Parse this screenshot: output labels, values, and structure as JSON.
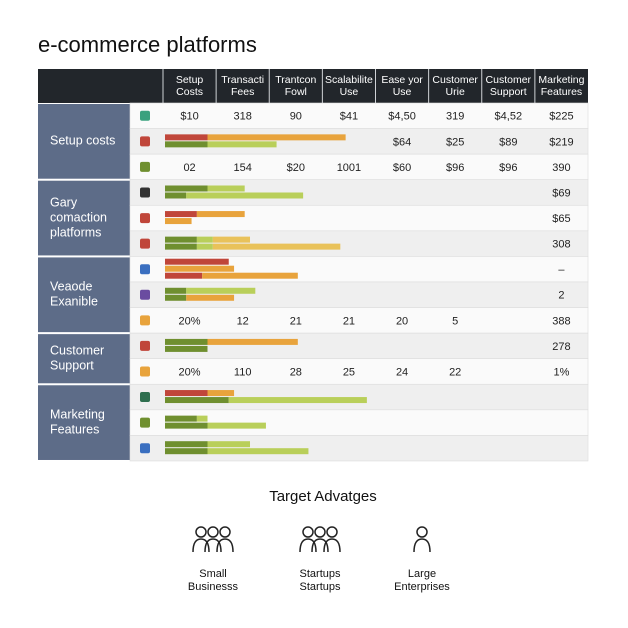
{
  "title": "e-commerce platforms",
  "table": {
    "columns": [
      [
        "Setup",
        "Costs"
      ],
      [
        "Transacti",
        "Fees"
      ],
      [
        "Trantcon",
        "Fowl"
      ],
      [
        "Scalabilite",
        "Use"
      ],
      [
        "Ease yor",
        "Use"
      ],
      [
        "Customer",
        "Urie"
      ],
      [
        "Customer",
        "Support"
      ],
      [
        "Marketing",
        "Features"
      ]
    ],
    "groups": [
      {
        "label": [
          "Setup costs"
        ],
        "rows": [
          {
            "cells": [
              "$10",
              "318",
              "90",
              "$41",
              "$4,50",
              "319",
              "$4,52",
              "$225"
            ],
            "bars": []
          },
          {
            "cells": [
              null,
              null,
              null,
              null,
              "$64",
              "$25",
              "$89",
              "$219"
            ],
            "bars": [
              [
                {
                  "color": "#c0463a",
                  "value": 0.8
                },
                {
                  "color": "#e8a33c",
                  "value": 2.6
                }
              ],
              [
                {
                  "color": "#6f8f2f",
                  "value": 0.8
                },
                {
                  "color": "#b9cf5a",
                  "value": 1.3
                }
              ]
            ]
          },
          {
            "cells": [
              "02",
              "154",
              "$20",
              "1001",
              "$60",
              "$96",
              "$96",
              "390"
            ],
            "bars": []
          }
        ]
      },
      {
        "label": [
          "Gary",
          "comaction",
          "platforms"
        ],
        "rows": [
          {
            "cells": [
              null,
              null,
              null,
              null,
              null,
              null,
              null,
              "$69"
            ],
            "bars": [
              [
                {
                  "color": "#6f8f2f",
                  "value": 0.8
                },
                {
                  "color": "#b9cf5a",
                  "value": 0.7
                }
              ],
              [
                {
                  "color": "#6f8f2f",
                  "value": 0.4
                },
                {
                  "color": "#b9cf5a",
                  "value": 2.2
                }
              ]
            ]
          },
          {
            "cells": [
              null,
              null,
              null,
              null,
              null,
              null,
              null,
              "$65"
            ],
            "bars": [
              [
                {
                  "color": "#c0463a",
                  "value": 0.6
                },
                {
                  "color": "#e8a33c",
                  "value": 0.9
                }
              ],
              [
                {
                  "color": "#e8a33c",
                  "value": 0.5
                }
              ]
            ]
          },
          {
            "cells": [
              null,
              null,
              null,
              null,
              null,
              null,
              null,
              "308"
            ],
            "bars": [
              [
                {
                  "color": "#6f8f2f",
                  "value": 0.6
                },
                {
                  "color": "#b9cf5a",
                  "value": 0.3
                },
                {
                  "color": "#e9c25a",
                  "value": 0.7
                }
              ],
              [
                {
                  "color": "#6f8f2f",
                  "value": 0.6
                },
                {
                  "color": "#b9cf5a",
                  "value": 0.3
                },
                {
                  "color": "#e9c25a",
                  "value": 2.4
                }
              ]
            ]
          }
        ]
      },
      {
        "label": [
          "Veaode",
          "Exanible"
        ],
        "rows": [
          {
            "cells": [
              null,
              null,
              null,
              null,
              null,
              null,
              null,
              "–"
            ],
            "bars": [
              [
                {
                  "color": "#c0463a",
                  "value": 1.2
                }
              ],
              [
                {
                  "color": "#e8a33c",
                  "value": 1.3
                }
              ],
              [
                {
                  "color": "#c0463a",
                  "value": 0.7
                },
                {
                  "color": "#e8a33c",
                  "value": 1.8
                }
              ]
            ]
          },
          {
            "cells": [
              null,
              null,
              null,
              null,
              null,
              null,
              null,
              "2"
            ],
            "bars": [
              [
                {
                  "color": "#6f8f2f",
                  "value": 0.4
                },
                {
                  "color": "#b9cf5a",
                  "value": 1.3
                }
              ],
              [
                {
                  "color": "#6f8f2f",
                  "value": 0.4
                },
                {
                  "color": "#e8a33c",
                  "value": 0.9
                }
              ]
            ]
          },
          {
            "cells": [
              "20%",
              "12",
              "21",
              "21",
              "20",
              "5",
              null,
              "388"
            ],
            "bars": []
          }
        ]
      },
      {
        "label": [
          "Customer",
          "Support"
        ],
        "rows": [
          {
            "cells": [
              null,
              null,
              null,
              null,
              null,
              null,
              null,
              "278"
            ],
            "bars": [
              [
                {
                  "color": "#6f8f2f",
                  "value": 0.8
                },
                {
                  "color": "#e8a33c",
                  "value": 1.7
                }
              ],
              [
                {
                  "color": "#6f8f2f",
                  "value": 0.8
                }
              ]
            ]
          },
          {
            "cells": [
              "20%",
              "110",
              "28",
              "25",
              "24",
              "22",
              null,
              "1%"
            ],
            "bars": []
          }
        ]
      },
      {
        "label": [
          "Marketing",
          "Features"
        ],
        "rows": [
          {
            "cells": [
              null,
              null,
              null,
              null,
              null,
              null,
              null,
              null
            ],
            "bars": [
              [
                {
                  "color": "#c0463a",
                  "value": 0.8
                },
                {
                  "color": "#e8a33c",
                  "value": 0.5
                }
              ],
              [
                {
                  "color": "#6f8f2f",
                  "value": 1.2
                },
                {
                  "color": "#b9cf5a",
                  "value": 2.6
                }
              ]
            ]
          },
          {
            "cells": [
              null,
              null,
              null,
              null,
              null,
              null,
              null,
              null
            ],
            "bars": [
              [
                {
                  "color": "#6f8f2f",
                  "value": 0.6
                },
                {
                  "color": "#b9cf5a",
                  "value": 0.2
                }
              ],
              [
                {
                  "color": "#6f8f2f",
                  "value": 0.8
                },
                {
                  "color": "#b9cf5a",
                  "value": 1.1
                }
              ]
            ]
          },
          {
            "cells": [
              null,
              null,
              null,
              null,
              null,
              null,
              null,
              null
            ],
            "bars": [
              [
                {
                  "color": "#6f8f2f",
                  "value": 0.8
                },
                {
                  "color": "#b9cf5a",
                  "value": 0.8
                }
              ],
              [
                {
                  "color": "#6f8f2f",
                  "value": 0.8
                },
                {
                  "color": "#b9cf5a",
                  "value": 1.9
                }
              ]
            ]
          }
        ]
      }
    ]
  },
  "bottom": {
    "title": "Target Advatges",
    "items": [
      [
        "Small",
        "Businesss"
      ],
      [
        "Startups",
        "Startups"
      ],
      [
        "Large",
        "Enterprises"
      ]
    ]
  }
}
